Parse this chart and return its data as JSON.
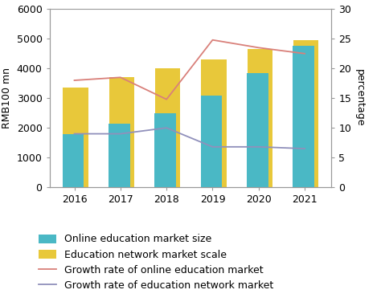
{
  "years": [
    2016,
    2017,
    2018,
    2019,
    2020,
    2021
  ],
  "online_edu_market": [
    1800,
    2150,
    2500,
    3100,
    3850,
    4750
  ],
  "edu_network_market": [
    3350,
    3700,
    4000,
    4300,
    4650,
    4950
  ],
  "growth_online": [
    18.0,
    18.5,
    14.8,
    24.8,
    23.5,
    22.5
  ],
  "growth_network": [
    9.0,
    9.0,
    10.0,
    6.8,
    6.8,
    6.5
  ],
  "bar_color_online": "#4ab8c5",
  "bar_color_network": "#e8c83a",
  "line_color_online": "#d9807a",
  "line_color_network": "#9090bb",
  "ylabel_left": "RMB100 mn",
  "ylabel_right": "percentage",
  "ylim_left": [
    0,
    6000
  ],
  "ylim_right": [
    0,
    30
  ],
  "yticks_left": [
    0,
    1000,
    2000,
    3000,
    4000,
    5000,
    6000
  ],
  "yticks_right": [
    0,
    5,
    10,
    15,
    20,
    25,
    30
  ],
  "legend_labels": [
    "Online education market size",
    "Education network market scale",
    "Growth rate of online education market",
    "Growth rate of education network market"
  ],
  "bg_color": "#ffffff",
  "axis_fontsize": 9,
  "legend_fontsize": 9
}
